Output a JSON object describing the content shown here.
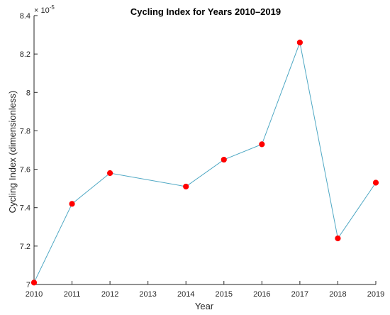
{
  "chart_data": {
    "type": "line",
    "title": "Cycling Index for Years 2010–2019",
    "xlabel": "Year",
    "ylabel": "Cycling Index (dimensionless)",
    "y_exponent_base": "× 10",
    "y_exponent_power": "-5",
    "x": [
      2010,
      2011,
      2012,
      2014,
      2015,
      2016,
      2017,
      2018,
      2019
    ],
    "values": [
      7.01,
      7.42,
      7.58,
      7.51,
      7.65,
      7.73,
      8.26,
      7.24,
      7.53
    ],
    "xlim": [
      2010,
      2019
    ],
    "ylim": [
      7.0,
      8.4
    ],
    "x_ticks": [
      2010,
      2011,
      2012,
      2013,
      2014,
      2015,
      2016,
      2017,
      2018,
      2019
    ],
    "x_tick_labels": [
      "2010",
      "2011",
      "2012",
      "2013",
      "2014",
      "2015",
      "2016",
      "2017",
      "2018",
      "2019"
    ],
    "y_ticks": [
      7.0,
      7.2,
      7.4,
      7.6,
      7.8,
      8.0,
      8.2,
      8.4
    ],
    "y_tick_labels": [
      "7",
      "7.2",
      "7.4",
      "7.6",
      "7.8",
      "8",
      "8.2",
      "8.4"
    ],
    "grid": false,
    "line_color": "#4fa8c4",
    "marker_color": "#ff0000",
    "axis_color": "#262626"
  }
}
